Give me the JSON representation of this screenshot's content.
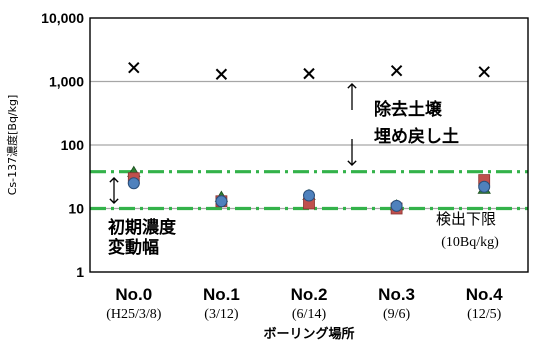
{
  "chart_data": {
    "type": "scatter",
    "scale": "log",
    "ylim": [
      1,
      10000
    ],
    "y_ticks": [
      "1",
      "10",
      "100",
      "1,000",
      "10,000"
    ],
    "ylabel": "Cs-137濃度[Bq/kg]",
    "xlabel": "ボーリング場所",
    "categories": [
      {
        "main": "No.0",
        "sub": "(H25/3/8)"
      },
      {
        "main": "No.1",
        "sub": "(3/12)"
      },
      {
        "main": "No.2",
        "sub": "(6/14)"
      },
      {
        "main": "No.3",
        "sub": "(9/6)"
      },
      {
        "main": "No.4",
        "sub": "(12/5)"
      }
    ],
    "series": [
      {
        "marker": "cross",
        "color": "#000000",
        "values": [
          1650,
          1300,
          1330,
          1480,
          1420
        ]
      },
      {
        "marker": "triangle",
        "color": "#2e7d32",
        "values": [
          37,
          15,
          16,
          11,
          20
        ]
      },
      {
        "marker": "square",
        "color": "#c0504d",
        "values": [
          30,
          13,
          12,
          10,
          28
        ]
      },
      {
        "marker": "circle",
        "color": "#4f81bd",
        "values": [
          25,
          13,
          16,
          11,
          22
        ]
      }
    ],
    "grid": true,
    "reference_lines": [
      {
        "value": 38,
        "style": "dash-dot",
        "color": "#33b24a"
      },
      {
        "value": 10,
        "style": "dash-dot",
        "color": "#33b24a"
      }
    ],
    "annotations": {
      "removal_soil": "除去土壌",
      "refill_soil": "埋め戻し土",
      "initial_range_1": "初期濃度",
      "initial_range_2": "変動幅",
      "detection_limit_1": "検出下限",
      "detection_limit_2": "(10Bq/kg)"
    }
  }
}
